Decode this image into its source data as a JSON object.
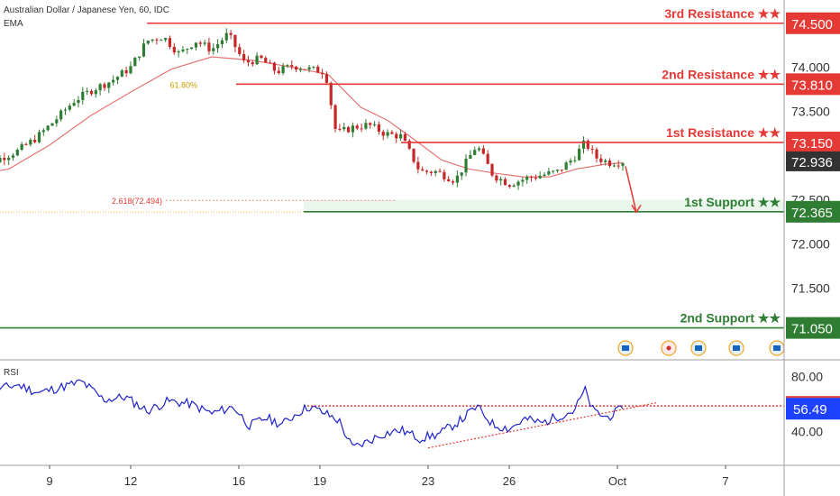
{
  "header": {
    "title": "Australian Dollar / Japanese Yen, 60, IDC",
    "indicator": "EMA"
  },
  "colors": {
    "resistance": "#e53935",
    "support": "#2e7d32",
    "bull": "#2e7d32",
    "bear": "#c62828",
    "ema": "#e57373",
    "rsi": "#1e22c8",
    "last_price": "#333333",
    "rsi_last": "#1e40ff"
  },
  "chart_data": [
    {
      "type": "candlestick",
      "title": "Australian Dollar / Japanese Yen, 60, IDC",
      "x_ticks": [
        "9",
        "12",
        "16",
        "19",
        "23",
        "26",
        "Oct",
        "7"
      ],
      "x_tick_positions": [
        9,
        12,
        16,
        19,
        23,
        26,
        30,
        34
      ],
      "x_range": [
        6.2,
        35.0
      ],
      "ylim": [
        70.76,
        74.62
      ],
      "y_ticks": [
        "74.000",
        "73.500",
        "72.500",
        "72.000",
        "71.500"
      ],
      "y_tick_values": [
        74.0,
        73.5,
        72.5,
        72.0,
        71.5
      ],
      "last_price": 72.936,
      "last_price_label": "72.936",
      "ema_label": "EMA",
      "price_path": [
        [
          6.2,
          72.88
        ],
        [
          7.0,
          72.95
        ],
        [
          7.8,
          73.05
        ],
        [
          8.5,
          73.2
        ],
        [
          9.2,
          73.4
        ],
        [
          9.9,
          73.62
        ],
        [
          10.6,
          73.75
        ],
        [
          11.3,
          73.85
        ],
        [
          12.0,
          74.0
        ],
        [
          12.6,
          74.3
        ],
        [
          13.2,
          74.35
        ],
        [
          13.8,
          74.15
        ],
        [
          14.4,
          74.3
        ],
        [
          15.0,
          74.2
        ],
        [
          15.6,
          74.38
        ],
        [
          16.2,
          74.05
        ],
        [
          16.8,
          74.1
        ],
        [
          17.4,
          73.95
        ],
        [
          18.0,
          74.02
        ],
        [
          18.6,
          73.98
        ],
        [
          19.2,
          73.95
        ],
        [
          19.6,
          73.25
        ],
        [
          20.2,
          73.32
        ],
        [
          20.8,
          73.35
        ],
        [
          21.4,
          73.25
        ],
        [
          22.0,
          73.22
        ],
        [
          22.7,
          72.82
        ],
        [
          23.3,
          72.82
        ],
        [
          24.0,
          72.72
        ],
        [
          24.8,
          73.12
        ],
        [
          25.4,
          72.78
        ],
        [
          26.0,
          72.68
        ],
        [
          26.6,
          72.74
        ],
        [
          27.2,
          72.78
        ],
        [
          27.8,
          72.82
        ],
        [
          28.4,
          72.98
        ],
        [
          28.8,
          73.15
        ],
        [
          29.2,
          72.98
        ],
        [
          29.7,
          72.92
        ],
        [
          30.2,
          72.936
        ]
      ],
      "ema_path": [
        [
          6.2,
          72.78
        ],
        [
          7.5,
          72.85
        ],
        [
          9.0,
          73.12
        ],
        [
          10.5,
          73.45
        ],
        [
          12.0,
          73.72
        ],
        [
          13.5,
          73.98
        ],
        [
          15.0,
          74.12
        ],
        [
          16.5,
          74.08
        ],
        [
          18.0,
          74.0
        ],
        [
          19.3,
          73.92
        ],
        [
          20.5,
          73.55
        ],
        [
          21.5,
          73.4
        ],
        [
          22.5,
          73.18
        ],
        [
          23.5,
          72.95
        ],
        [
          24.5,
          72.85
        ],
        [
          25.5,
          72.8
        ],
        [
          26.5,
          72.76
        ],
        [
          27.5,
          72.76
        ],
        [
          28.5,
          72.85
        ],
        [
          29.5,
          72.9
        ],
        [
          30.2,
          72.92
        ]
      ],
      "levels": [
        {
          "label": "3rd Resistance ★★",
          "value": 74.5,
          "value_label": "74.500",
          "kind": "resistance",
          "x_start": 12.6
        },
        {
          "label": "2nd Resistance ★★",
          "value": 73.81,
          "value_label": "73.810",
          "kind": "resistance",
          "x_start": 15.9
        },
        {
          "label": "1st Resistance ★★",
          "value": 73.15,
          "value_label": "73.150",
          "kind": "resistance",
          "x_start": 22.0
        },
        {
          "label": "1st Support ★★",
          "value": 72.365,
          "value_label": "72.365",
          "kind": "support",
          "x_start": 18.4
        },
        {
          "label": "2nd Support ★★",
          "value": 71.05,
          "value_label": "71.050",
          "kind": "support",
          "x_start": 6.2
        }
      ],
      "fib_annotations": [
        {
          "label": "61.80%",
          "value": 73.81,
          "x_start": 14.6
        },
        {
          "label": "2.618(72.494)",
          "value": 72.494,
          "x_start": 13.3
        }
      ],
      "arrow": {
        "from": [
          30.3,
          72.88
        ],
        "to": [
          30.7,
          72.36
        ]
      },
      "support_zone": [
        72.365,
        72.5
      ],
      "event_icons": [
        {
          "x": 30.3,
          "icon": "flag-icon"
        },
        {
          "x": 31.9,
          "icon": "dot-icon"
        },
        {
          "x": 33.0,
          "icon": "flag-icon"
        },
        {
          "x": 34.4,
          "icon": "flag-icon"
        },
        {
          "x": 35.9,
          "icon": "flag-icon"
        }
      ]
    },
    {
      "type": "line",
      "title": "RSI",
      "ylim": [
        18,
        90
      ],
      "y_ticks": [
        "80.00",
        "40.00"
      ],
      "y_tick_values": [
        80,
        40
      ],
      "last_value": 56.49,
      "last_value_label": "56.49",
      "rsi_path": [
        [
          6.2,
          73
        ],
        [
          7.0,
          70
        ],
        [
          7.8,
          74
        ],
        [
          8.6,
          68
        ],
        [
          9.4,
          72
        ],
        [
          10.2,
          76
        ],
        [
          11.0,
          63
        ],
        [
          11.8,
          65
        ],
        [
          12.6,
          55
        ],
        [
          13.4,
          62
        ],
        [
          14.2,
          60
        ],
        [
          15.0,
          53
        ],
        [
          15.8,
          58
        ],
        [
          16.4,
          44
        ],
        [
          17.0,
          50
        ],
        [
          17.6,
          45
        ],
        [
          18.2,
          54
        ],
        [
          18.6,
          58
        ],
        [
          19.2,
          53
        ],
        [
          19.7,
          48
        ],
        [
          20.2,
          28
        ],
        [
          20.7,
          32
        ],
        [
          21.3,
          38
        ],
        [
          22.0,
          41
        ],
        [
          22.7,
          35
        ],
        [
          23.4,
          38
        ],
        [
          24.2,
          48
        ],
        [
          24.8,
          58
        ],
        [
          25.4,
          45
        ],
        [
          26.0,
          42
        ],
        [
          26.6,
          49
        ],
        [
          27.2,
          46
        ],
        [
          27.8,
          51
        ],
        [
          28.4,
          55
        ],
        [
          28.8,
          70
        ],
        [
          29.1,
          55
        ],
        [
          29.6,
          50
        ],
        [
          30.2,
          56.49
        ]
      ],
      "resistance_line": {
        "value": 58.5,
        "x_start": 18.4
      },
      "trend_line": {
        "from": [
          23.0,
          28
        ],
        "to": [
          31.5,
          61
        ]
      }
    }
  ]
}
